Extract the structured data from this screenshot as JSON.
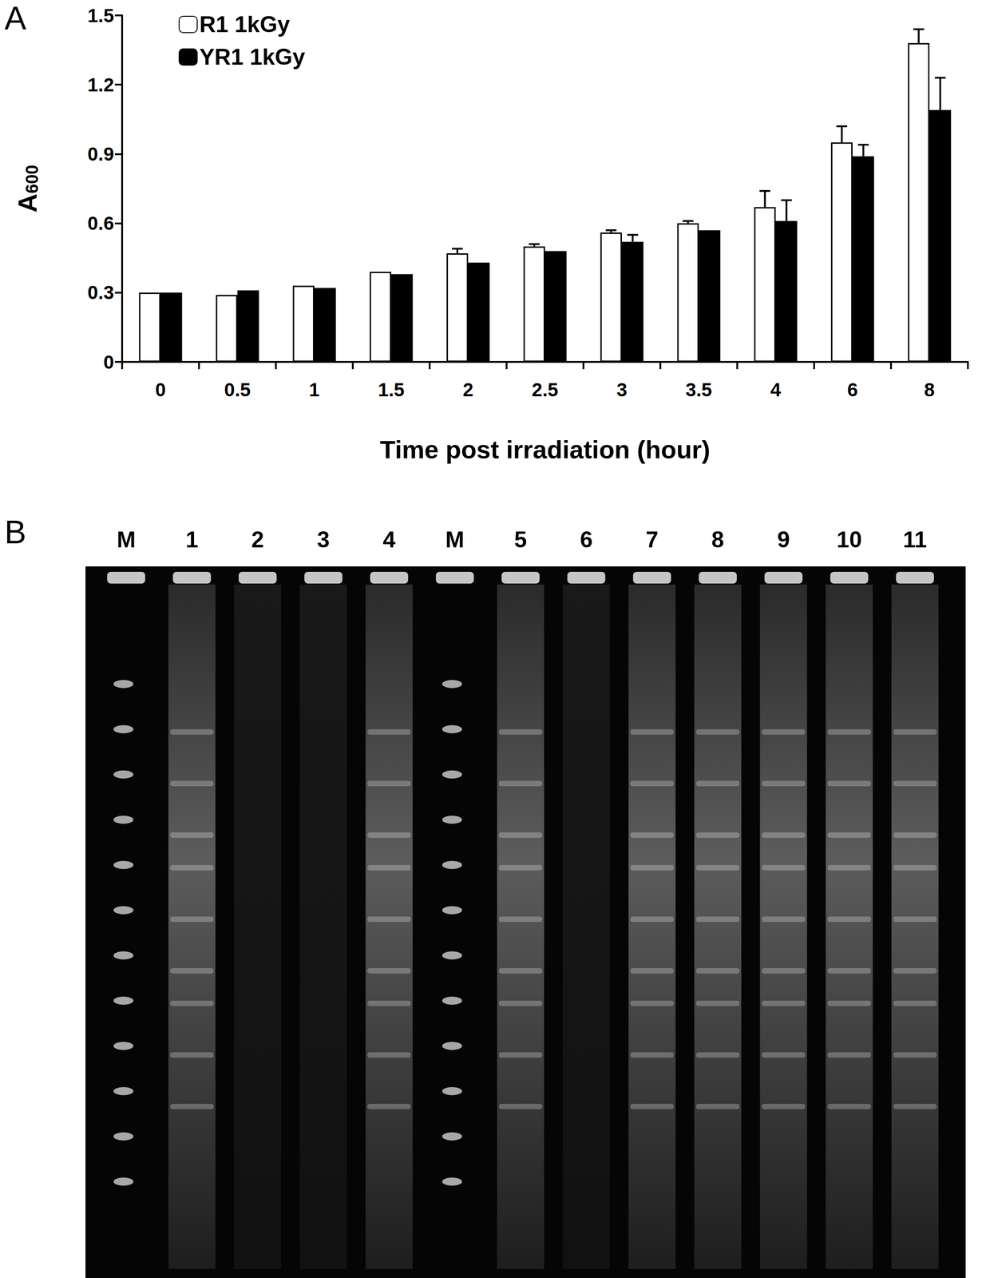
{
  "chart_data": {
    "type": "bar",
    "x_label": "Time post irradiation (hour)",
    "y_label": "A600",
    "categories": [
      "0",
      "0.5",
      "1",
      "1.5",
      "2",
      "2.5",
      "3",
      "3.5",
      "4",
      "6",
      "8"
    ],
    "series": [
      {
        "name": "R1 1kGy",
        "color": "#ffffff",
        "values": [
          0.3,
          0.29,
          0.33,
          0.39,
          0.47,
          0.5,
          0.56,
          0.6,
          0.67,
          0.95,
          1.38
        ],
        "errors": [
          0,
          0,
          0,
          0,
          0.02,
          0.01,
          0.01,
          0.01,
          0.07,
          0.07,
          0.06
        ]
      },
      {
        "name": "YR1 1kGy",
        "color": "#000000",
        "values": [
          0.3,
          0.31,
          0.32,
          0.38,
          0.43,
          0.48,
          0.52,
          0.57,
          0.61,
          0.89,
          1.09
        ],
        "errors": [
          0,
          0,
          0,
          0,
          0,
          0,
          0.03,
          0,
          0.09,
          0.05,
          0.14
        ]
      }
    ],
    "ylim": [
      0,
      1.5
    ],
    "yticks": [
      0,
      0.3,
      0.6,
      0.9,
      1.2,
      1.5
    ],
    "legend": "upper left",
    "grid": false
  },
  "panel_labels": [
    "A",
    "B"
  ],
  "gel": {
    "lanes": [
      "M",
      "1",
      "2",
      "3",
      "4",
      "M",
      "5",
      "6",
      "7",
      "8",
      "9",
      "10",
      "11"
    ]
  }
}
